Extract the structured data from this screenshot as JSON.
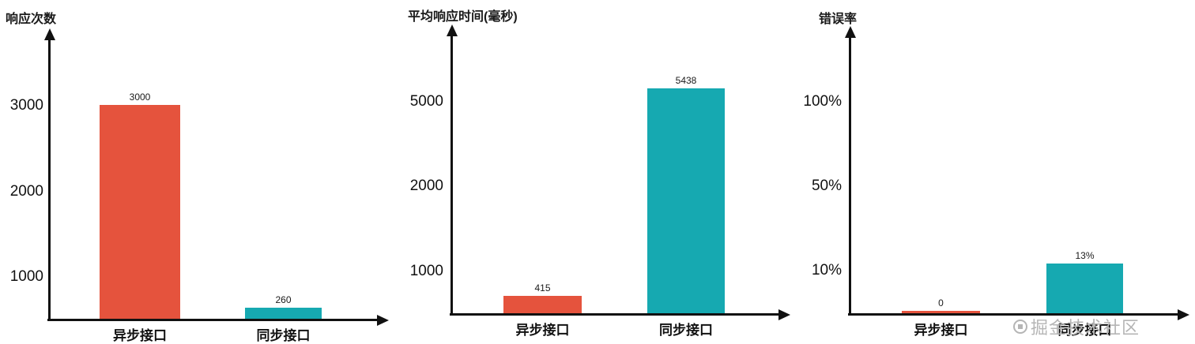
{
  "page": {
    "background": "#ffffff",
    "axis_color": "#111111"
  },
  "watermark": {
    "icon": "juejin-logo",
    "text": "掘金技术社区",
    "color": "#b5b5b5"
  },
  "chart_data": [
    {
      "type": "bar",
      "title": "响应次数",
      "ylabel": "响应次数",
      "xlabel": "",
      "categories": [
        "异步接口",
        "同步接口"
      ],
      "values": [
        3000,
        260
      ],
      "value_labels": [
        "3000",
        "260"
      ],
      "bar_colors": [
        "#e5533d",
        "#16a9b1"
      ],
      "yticks": [
        {
          "label": "1000",
          "value": 1000
        },
        {
          "label": "2000",
          "value": 2000
        },
        {
          "label": "3000",
          "value": 3000
        }
      ],
      "ylim": [
        0,
        3500
      ],
      "grid": false,
      "legend": "none"
    },
    {
      "type": "bar",
      "title": "平均响应时间(毫秒)",
      "ylabel": "平均响应时间(毫秒)",
      "xlabel": "",
      "categories": [
        "异步接口",
        "同步接口"
      ],
      "values": [
        415,
        5438
      ],
      "value_labels": [
        "415",
        "5438"
      ],
      "bar_colors": [
        "#e5533d",
        "#16a9b1"
      ],
      "yticks": [
        {
          "label": "1000",
          "value": 1000
        },
        {
          "label": "2000",
          "value": 2000
        },
        {
          "label": "5000",
          "value": 5000
        }
      ],
      "ylim": [
        0,
        6200
      ],
      "grid": false,
      "legend": "none"
    },
    {
      "type": "bar",
      "title": "错误率",
      "ylabel": "错误率",
      "xlabel": "",
      "categories": [
        "异步接口",
        "同步接口"
      ],
      "values": [
        0,
        13
      ],
      "value_labels": [
        "0",
        "13%"
      ],
      "bar_colors": [
        "#e5533d",
        "#16a9b1"
      ],
      "yticks": [
        {
          "label": "10%",
          "value": 10
        },
        {
          "label": "50%",
          "value": 50
        },
        {
          "label": "100%",
          "value": 100
        }
      ],
      "ylim": [
        0,
        130
      ],
      "grid": false,
      "legend": "none"
    }
  ]
}
